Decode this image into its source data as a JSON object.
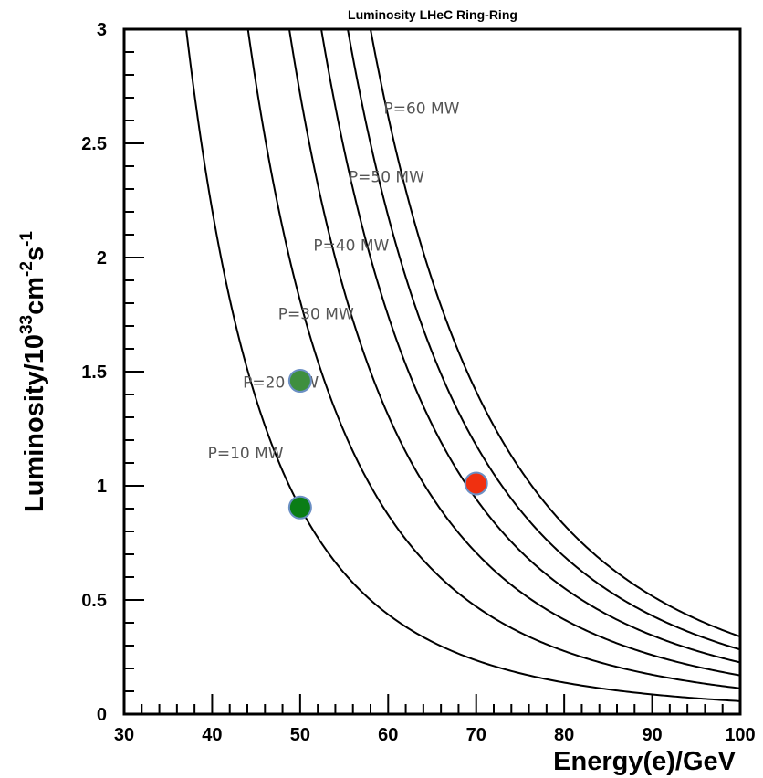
{
  "chart_data": {
    "type": "line",
    "title": "Luminosity  LHeC Ring-Ring",
    "xlabel": "Energy(e)/GeV",
    "ylabel": {
      "base": "Luminosity/10",
      "exp1": "33",
      "mid": "cm",
      "exp2": "-2",
      "mid2": "s",
      "exp3": "-1"
    },
    "xlim": [
      30,
      100
    ],
    "ylim": [
      0,
      3
    ],
    "xticks": [
      "30",
      "40",
      "50",
      "60",
      "70",
      "80",
      "90",
      "100"
    ],
    "yticks": [
      "0",
      "0.5",
      "1",
      "1.5",
      "2",
      "2.5",
      "3"
    ],
    "grid": false,
    "curve_model": "L proportional to P / E^4",
    "series": [
      {
        "name": "P=10 MW",
        "power_mw": 10,
        "label_pos": [
          39.5,
          1.12
        ]
      },
      {
        "name": "P=20 MW",
        "power_mw": 20,
        "label_pos": [
          43.5,
          1.43
        ]
      },
      {
        "name": "P=30 MW",
        "power_mw": 30,
        "label_pos": [
          47.5,
          1.73
        ]
      },
      {
        "name": "P=40 MW",
        "power_mw": 40,
        "label_pos": [
          51.5,
          2.03
        ]
      },
      {
        "name": "P=50 MW",
        "power_mw": 50,
        "label_pos": [
          55.5,
          2.33
        ]
      },
      {
        "name": "P=60 MW",
        "power_mw": 60,
        "label_pos": [
          59.5,
          2.63
        ]
      }
    ],
    "points": [
      {
        "x": 50,
        "y": 1.46,
        "color": "#3f8f3f"
      },
      {
        "x": 50,
        "y": 0.905,
        "color": "#0a7d16"
      },
      {
        "x": 70,
        "y": 1.01,
        "color": "#f03010"
      }
    ],
    "colors": {
      "curve": "#000000",
      "marker_edge": "#6b8fc4"
    }
  }
}
